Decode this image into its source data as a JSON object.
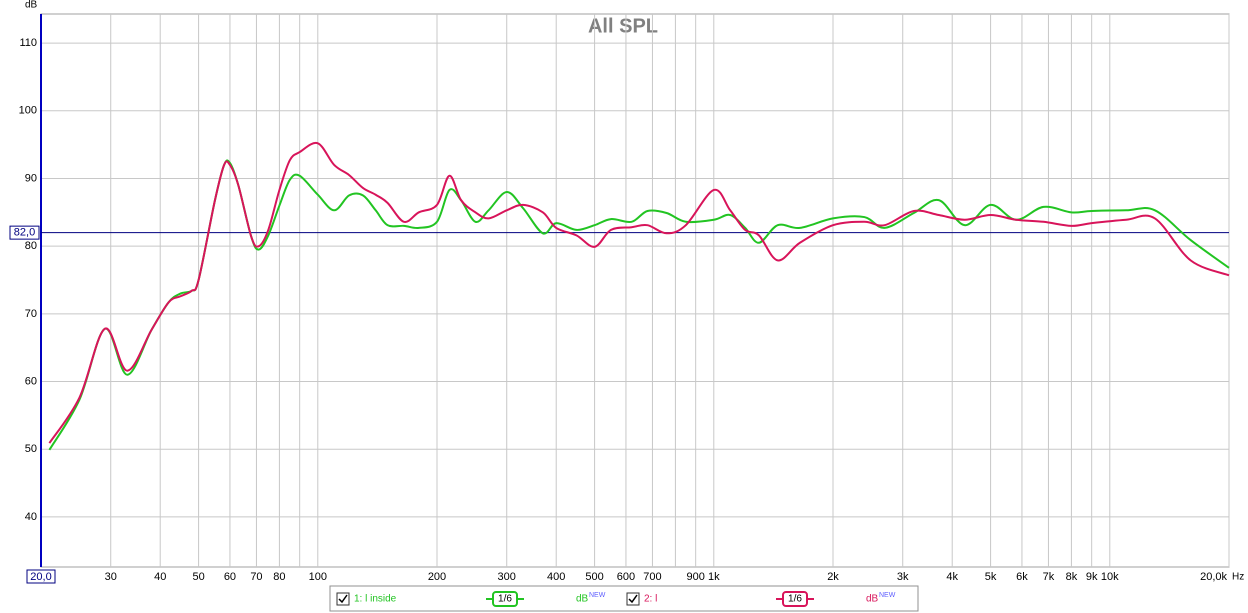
{
  "chart_data": {
    "type": "line",
    "title": "All SPL",
    "y_label": "dB",
    "x_label": "Hz",
    "log_x": true,
    "grid": true,
    "xlim": [
      20,
      20000
    ],
    "ylim": [
      32.6,
      114.3
    ],
    "xticks": [
      {
        "value": 20,
        "label": "20,0"
      },
      30,
      40,
      50,
      60,
      70,
      80,
      {
        "value": 90,
        "label": null
      },
      100,
      200,
      300,
      400,
      500,
      600,
      700,
      {
        "value": 800,
        "label": null
      },
      900,
      {
        "value": 1000,
        "label": "1k"
      },
      {
        "value": 2000,
        "label": "2k"
      },
      {
        "value": 3000,
        "label": "3k"
      },
      {
        "value": 4000,
        "label": "4k"
      },
      {
        "value": 5000,
        "label": "5k"
      },
      {
        "value": 6000,
        "label": "6k"
      },
      {
        "value": 7000,
        "label": "7k"
      },
      {
        "value": 8000,
        "label": "8k"
      },
      {
        "value": 9000,
        "label": "9k"
      },
      {
        "value": 10000,
        "label": "10k"
      },
      {
        "value": 20000,
        "label": "20,0k"
      }
    ],
    "yticks": [
      40,
      50,
      60,
      70,
      80,
      90,
      100,
      110
    ],
    "reference_line": {
      "value": 82,
      "label": "82,0",
      "color": "#000080"
    },
    "x": [
      21,
      25,
      29,
      33,
      38,
      42,
      45,
      48,
      50,
      55,
      58,
      60,
      63,
      68,
      71,
      75,
      80,
      85,
      90,
      100,
      110,
      120,
      130,
      140,
      150,
      165,
      180,
      200,
      215,
      230,
      250,
      270,
      300,
      330,
      370,
      400,
      450,
      500,
      550,
      620,
      680,
      760,
      850,
      1000,
      1100,
      1200,
      1300,
      1450,
      1650,
      2000,
      2400,
      2700,
      3200,
      3700,
      4300,
      5000,
      5800,
      6800,
      8000,
      9000,
      11000,
      13000,
      16000,
      20000
    ],
    "series": [
      {
        "name": "1: l inside",
        "color": "#22c422",
        "smoothing": "1/6",
        "unit": "dB",
        "unit_tag": "NEW",
        "values": [
          49.9,
          57.3,
          67.8,
          61.0,
          67.6,
          71.7,
          73.0,
          73.4,
          75.0,
          86.8,
          92.0,
          92.3,
          89.0,
          81.3,
          79.5,
          81.6,
          86.0,
          89.8,
          90.4,
          87.6,
          85.3,
          87.5,
          87.5,
          85.3,
          83.1,
          83.0,
          82.7,
          83.6,
          88.3,
          86.8,
          83.6,
          85.3,
          88.0,
          85.6,
          81.9,
          83.4,
          82.4,
          83.1,
          84.0,
          83.6,
          85.2,
          84.9,
          83.6,
          83.9,
          84.6,
          82.7,
          80.5,
          83.1,
          82.7,
          84.1,
          84.3,
          82.7,
          84.9,
          86.8,
          83.1,
          86.1,
          83.9,
          85.8,
          85.0,
          85.2,
          85.3,
          85.3,
          80.9,
          76.8
        ]
      },
      {
        "name": "2: l",
        "color": "#d8145a",
        "smoothing": "1/6",
        "unit": "dB",
        "unit_tag": "NEW",
        "values": [
          50.9,
          57.6,
          67.8,
          61.6,
          67.6,
          71.7,
          72.6,
          73.4,
          75.0,
          86.8,
          92.0,
          92.0,
          89.0,
          81.3,
          80.0,
          82.4,
          88.3,
          92.7,
          93.9,
          95.2,
          92.0,
          90.5,
          88.6,
          87.6,
          86.4,
          83.6,
          85.0,
          86.1,
          90.4,
          86.8,
          85.0,
          84.1,
          85.3,
          86.1,
          85.0,
          82.7,
          81.6,
          79.9,
          82.4,
          82.8,
          83.1,
          81.9,
          83.1,
          88.3,
          85.3,
          82.4,
          81.6,
          77.9,
          80.5,
          83.1,
          83.6,
          83.1,
          85.2,
          84.6,
          83.9,
          84.6,
          83.9,
          83.6,
          83.0,
          83.4,
          83.9,
          84.1,
          77.9,
          75.7
        ]
      }
    ]
  }
}
